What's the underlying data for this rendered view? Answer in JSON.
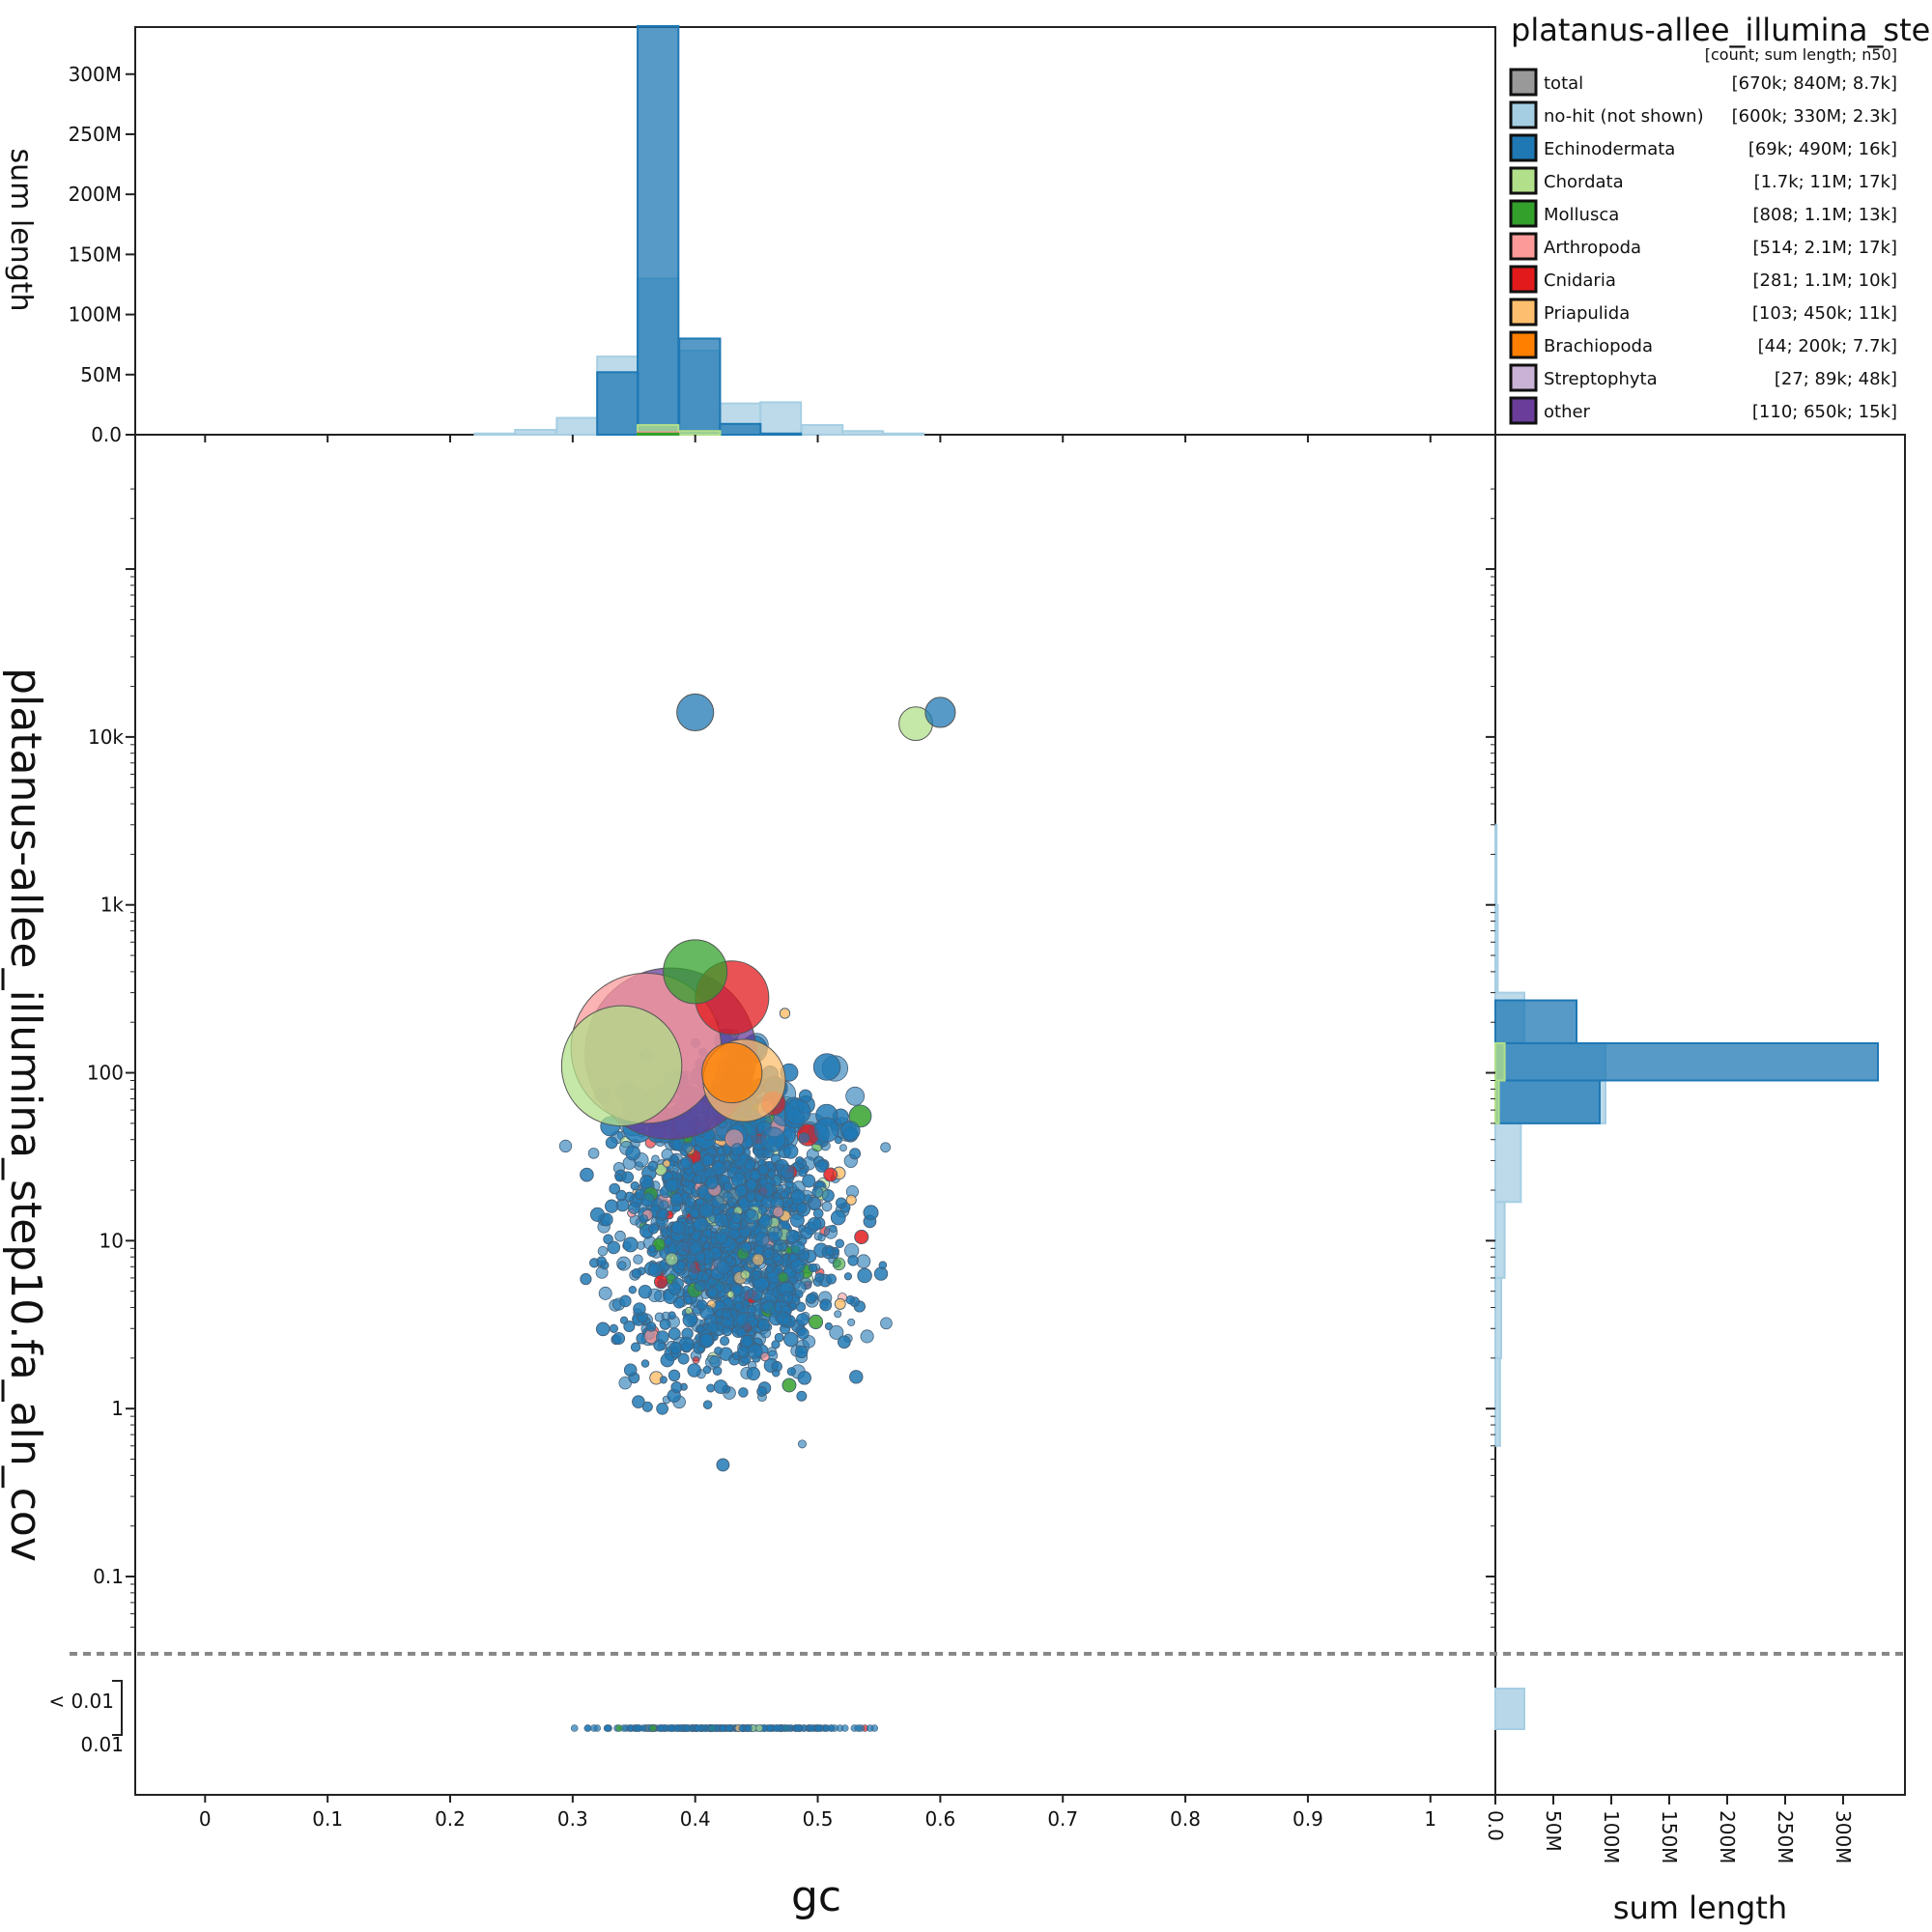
{
  "chart_data": {
    "type": "scatter",
    "title": "platanus-allee_illumina_step",
    "legend_subtitle": "[count; sum length; n50]",
    "legend_placement": "top-right",
    "xlabel": "gc",
    "ylabel": "platanus-allee_illumina_step10.fa_aln_cov",
    "top_hist_ylabel": "sum length",
    "right_hist_xlabel": "sum length",
    "xlim": [
      -0.057,
      1.053
    ],
    "ylim_log10": [
      -2.3,
      5.8
    ],
    "y_log_scale": true,
    "x_ticks": [
      "0",
      "0.1",
      "0.2",
      "0.3",
      "0.4",
      "0.5",
      "0.6",
      "0.7",
      "0.8",
      "0.9",
      "1"
    ],
    "y_ticks": [
      {
        "label": "0.01",
        "value": 0.01
      },
      {
        "label": "0.1",
        "value": 0.1
      },
      {
        "label": "1",
        "value": 1
      },
      {
        "label": "10",
        "value": 10
      },
      {
        "label": "100",
        "value": 100
      },
      {
        "label": "1k",
        "value": 1000
      },
      {
        "label": "10k",
        "value": 10000
      }
    ],
    "below_threshold_label": "< 0.01",
    "hist_ticks": [
      "0.0",
      "50M",
      "100M",
      "150M",
      "200M",
      "250M",
      "300M"
    ],
    "hist_tick_values": [
      0,
      50,
      100,
      150,
      200,
      250,
      300
    ],
    "hist_max_millions": 340,
    "legend": [
      {
        "name": "total",
        "stats": "[670k; 840M; 8.7k]",
        "color": "#999999"
      },
      {
        "name": "no-hit (not shown)",
        "stats": "[600k; 330M; 2.3k]",
        "color": "#a6cee3"
      },
      {
        "name": "Echinodermata",
        "stats": "[69k; 490M; 16k]",
        "color": "#1f78b4"
      },
      {
        "name": "Chordata",
        "stats": "[1.7k; 11M; 17k]",
        "color": "#b2df8a"
      },
      {
        "name": "Mollusca",
        "stats": "[808; 1.1M; 13k]",
        "color": "#33a02c"
      },
      {
        "name": "Arthropoda",
        "stats": "[514; 2.1M; 17k]",
        "color": "#fb9a99"
      },
      {
        "name": "Cnidaria",
        "stats": "[281; 1.1M; 10k]",
        "color": "#e31a1c"
      },
      {
        "name": "Priapulida",
        "stats": "[103; 450k; 11k]",
        "color": "#fdbf6f"
      },
      {
        "name": "Brachiopoda",
        "stats": "[44; 200k; 7.7k]",
        "color": "#ff7f00"
      },
      {
        "name": "Streptophyta",
        "stats": "[27; 89k; 48k]",
        "color": "#cab2d6"
      },
      {
        "name": "other",
        "stats": "[110; 650k; 15k]",
        "color": "#6a3d9a"
      }
    ],
    "gc_histogram": {
      "bin_width": 0.0333,
      "series": [
        {
          "name": "no-hit (not shown)",
          "bins": [
            {
              "gc": 0.22,
              "sum_millions": 1
            },
            {
              "gc": 0.253,
              "sum_millions": 4
            },
            {
              "gc": 0.287,
              "sum_millions": 14
            },
            {
              "gc": 0.32,
              "sum_millions": 65
            },
            {
              "gc": 0.353,
              "sum_millions": 130
            },
            {
              "gc": 0.387,
              "sum_millions": 70
            },
            {
              "gc": 0.42,
              "sum_millions": 26
            },
            {
              "gc": 0.453,
              "sum_millions": 27
            },
            {
              "gc": 0.487,
              "sum_millions": 8
            },
            {
              "gc": 0.52,
              "sum_millions": 3
            },
            {
              "gc": 0.553,
              "sum_millions": 1
            }
          ]
        },
        {
          "name": "Echinodermata",
          "bins": [
            {
              "gc": 0.32,
              "sum_millions": 52
            },
            {
              "gc": 0.353,
              "sum_millions": 340
            },
            {
              "gc": 0.387,
              "sum_millions": 80
            },
            {
              "gc": 0.42,
              "sum_millions": 9
            },
            {
              "gc": 0.453,
              "sum_millions": 1
            }
          ]
        },
        {
          "name": "Chordata",
          "bins": [
            {
              "gc": 0.353,
              "sum_millions": 8
            },
            {
              "gc": 0.387,
              "sum_millions": 3
            }
          ]
        },
        {
          "name": "Arthropoda",
          "bins": [
            {
              "gc": 0.353,
              "sum_millions": 2
            }
          ]
        },
        {
          "name": "Mollusca",
          "bins": [
            {
              "gc": 0.353,
              "sum_millions": 1
            }
          ]
        }
      ]
    },
    "cov_histogram": {
      "series": [
        {
          "name": "no-hit (not shown)",
          "bins": [
            {
              "cov_lo": 1000,
              "cov_hi": 3000,
              "sum_millions": 1
            },
            {
              "cov_lo": 300,
              "cov_hi": 1000,
              "sum_millions": 2
            },
            {
              "cov_lo": 150,
              "cov_hi": 300,
              "sum_millions": 25
            },
            {
              "cov_lo": 50,
              "cov_hi": 150,
              "sum_millions": 95
            },
            {
              "cov_lo": 17,
              "cov_hi": 50,
              "sum_millions": 22
            },
            {
              "cov_lo": 6,
              "cov_hi": 17,
              "sum_millions": 8
            },
            {
              "cov_lo": 2,
              "cov_hi": 6,
              "sum_millions": 5
            },
            {
              "cov_lo": 0.6,
              "cov_hi": 2,
              "sum_millions": 4
            }
          ]
        },
        {
          "name": "Echinodermata",
          "bins": [
            {
              "cov_lo": 150,
              "cov_hi": 270,
              "sum_millions": 70
            },
            {
              "cov_lo": 90,
              "cov_hi": 150,
              "sum_millions": 330
            },
            {
              "cov_lo": 50,
              "cov_hi": 90,
              "sum_millions": 90
            }
          ]
        },
        {
          "name": "Chordata",
          "bins": [
            {
              "cov_lo": 90,
              "cov_hi": 150,
              "sum_millions": 8
            },
            {
              "cov_lo": 50,
              "cov_hi": 90,
              "sum_millions": 3
            }
          ]
        }
      ],
      "below_threshold_sum_millions": 25
    },
    "blobs": [
      {
        "name": "other",
        "gc": 0.38,
        "cov": 130,
        "sum_length": 650000
      },
      {
        "name": "Arthropoda",
        "gc": 0.36,
        "cov": 140,
        "sum_length": 500000
      },
      {
        "name": "Chordata",
        "gc": 0.34,
        "cov": 110,
        "sum_length": 320000
      },
      {
        "name": "Priapulida",
        "gc": 0.44,
        "cov": 90,
        "sum_length": 150000
      },
      {
        "name": "Brachiopoda",
        "gc": 0.43,
        "cov": 100,
        "sum_length": 80000
      },
      {
        "name": "Cnidaria",
        "gc": 0.43,
        "cov": 280,
        "sum_length": 120000
      },
      {
        "name": "Mollusca",
        "gc": 0.4,
        "cov": 400,
        "sum_length": 90000
      },
      {
        "name": "Echinodermata",
        "gc": 0.4,
        "cov": 14000,
        "sum_length": 30000
      },
      {
        "name": "Chordata",
        "gc": 0.58,
        "cov": 12000,
        "sum_length": 25000
      },
      {
        "name": "Echinodermata",
        "gc": 0.6,
        "cov": 14000,
        "sum_length": 20000
      }
    ]
  }
}
